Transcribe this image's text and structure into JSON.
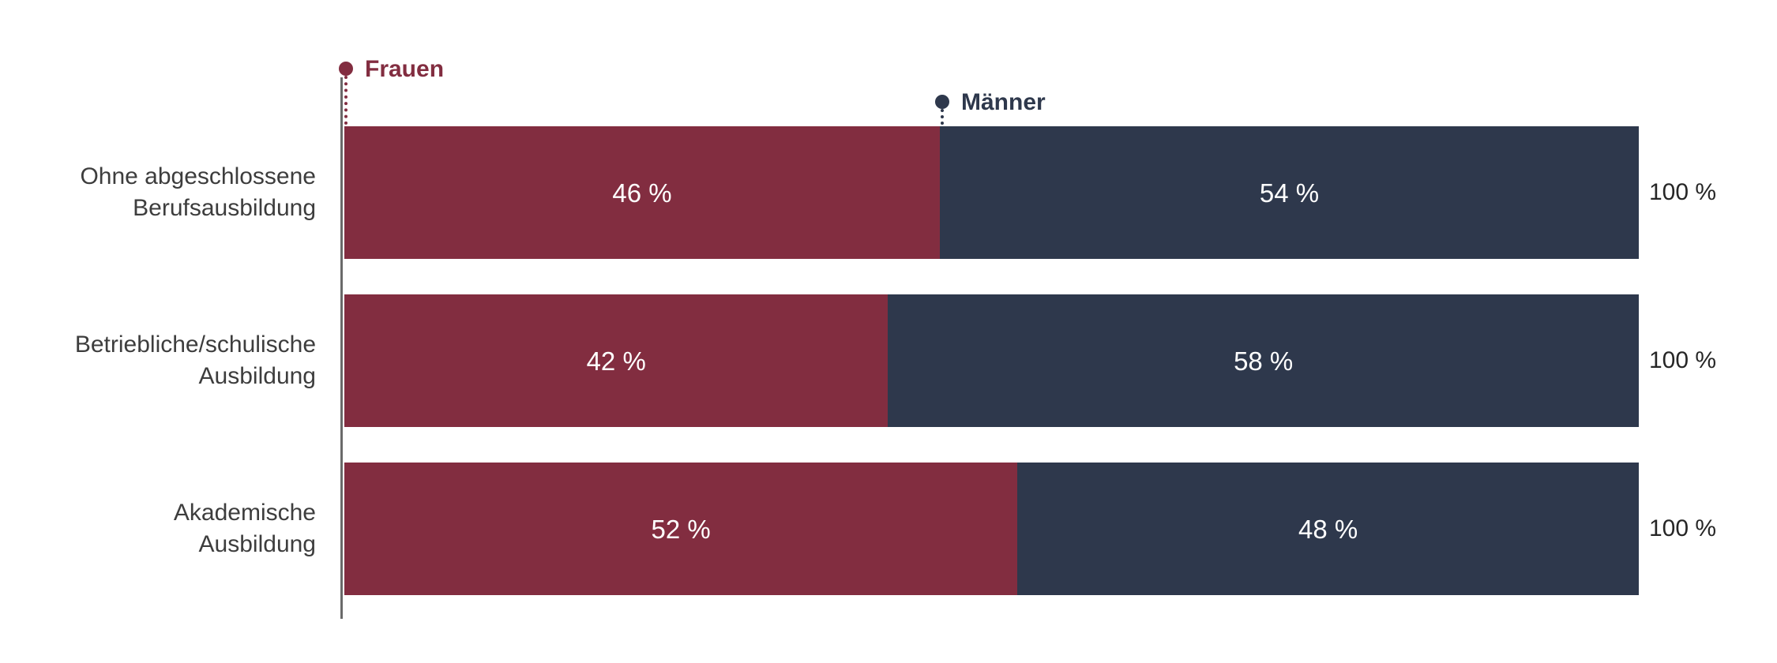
{
  "chart_data": {
    "type": "bar",
    "orientation": "horizontal",
    "stacked": true,
    "grid": false,
    "xlim": [
      0,
      100
    ],
    "value_suffix": " %",
    "categories": [
      "Ohne abgeschlossene Berufsausbildung",
      "Betriebliche/schulische Ausbildung",
      "Akademische Ausbildung"
    ],
    "category_label_lines": [
      [
        "Ohne abgeschlossene",
        "Berufsausbildung"
      ],
      [
        "Betriebliche/schulische",
        "Ausbildung"
      ],
      [
        "Akademische",
        "Ausbildung"
      ]
    ],
    "series": [
      {
        "name": "Frauen",
        "color": "#822d40",
        "values": [
          46,
          42,
          52
        ],
        "labels": [
          "46 %",
          "42 %",
          "52 %"
        ]
      },
      {
        "name": "Männer",
        "color": "#2e384c",
        "values": [
          54,
          58,
          48
        ],
        "labels": [
          "54 %",
          "58 %",
          "48 %"
        ]
      }
    ],
    "totals": [
      "100 %",
      "100 %",
      "100 %"
    ],
    "legend_position": "top, markers with dotted leader lines pointing at segment starts of first bar"
  },
  "colors": {
    "frauen": "#822d40",
    "maenner": "#2e384c",
    "axis": "#6a6a6a",
    "category_text": "#3d3d3d",
    "total_text": "#262626",
    "value_text": "#ffffff",
    "background": "#ffffff"
  }
}
